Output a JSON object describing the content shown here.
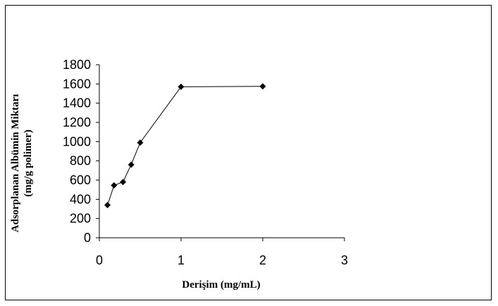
{
  "chart_data": {
    "type": "line",
    "title": "",
    "xlabel": "Derişim (mg/mL)",
    "ylabel_lines": [
      "Adsorplanan Albümin Miktarı",
      "(mg/g polimer)"
    ],
    "xlim": [
      0,
      3
    ],
    "ylim": [
      0,
      1800
    ],
    "x_ticks": [
      0,
      1,
      2,
      3
    ],
    "y_ticks": [
      0,
      200,
      400,
      600,
      800,
      1000,
      1200,
      1400,
      1600,
      1800
    ],
    "grid": false,
    "legend": "none",
    "series": [
      {
        "color": "#000000",
        "marker": "diamond",
        "x": [
          0.1,
          0.18,
          0.29,
          0.39,
          0.5,
          1.0,
          2.0
        ],
        "y": [
          340,
          545,
          580,
          760,
          990,
          1570,
          1575
        ]
      }
    ]
  }
}
